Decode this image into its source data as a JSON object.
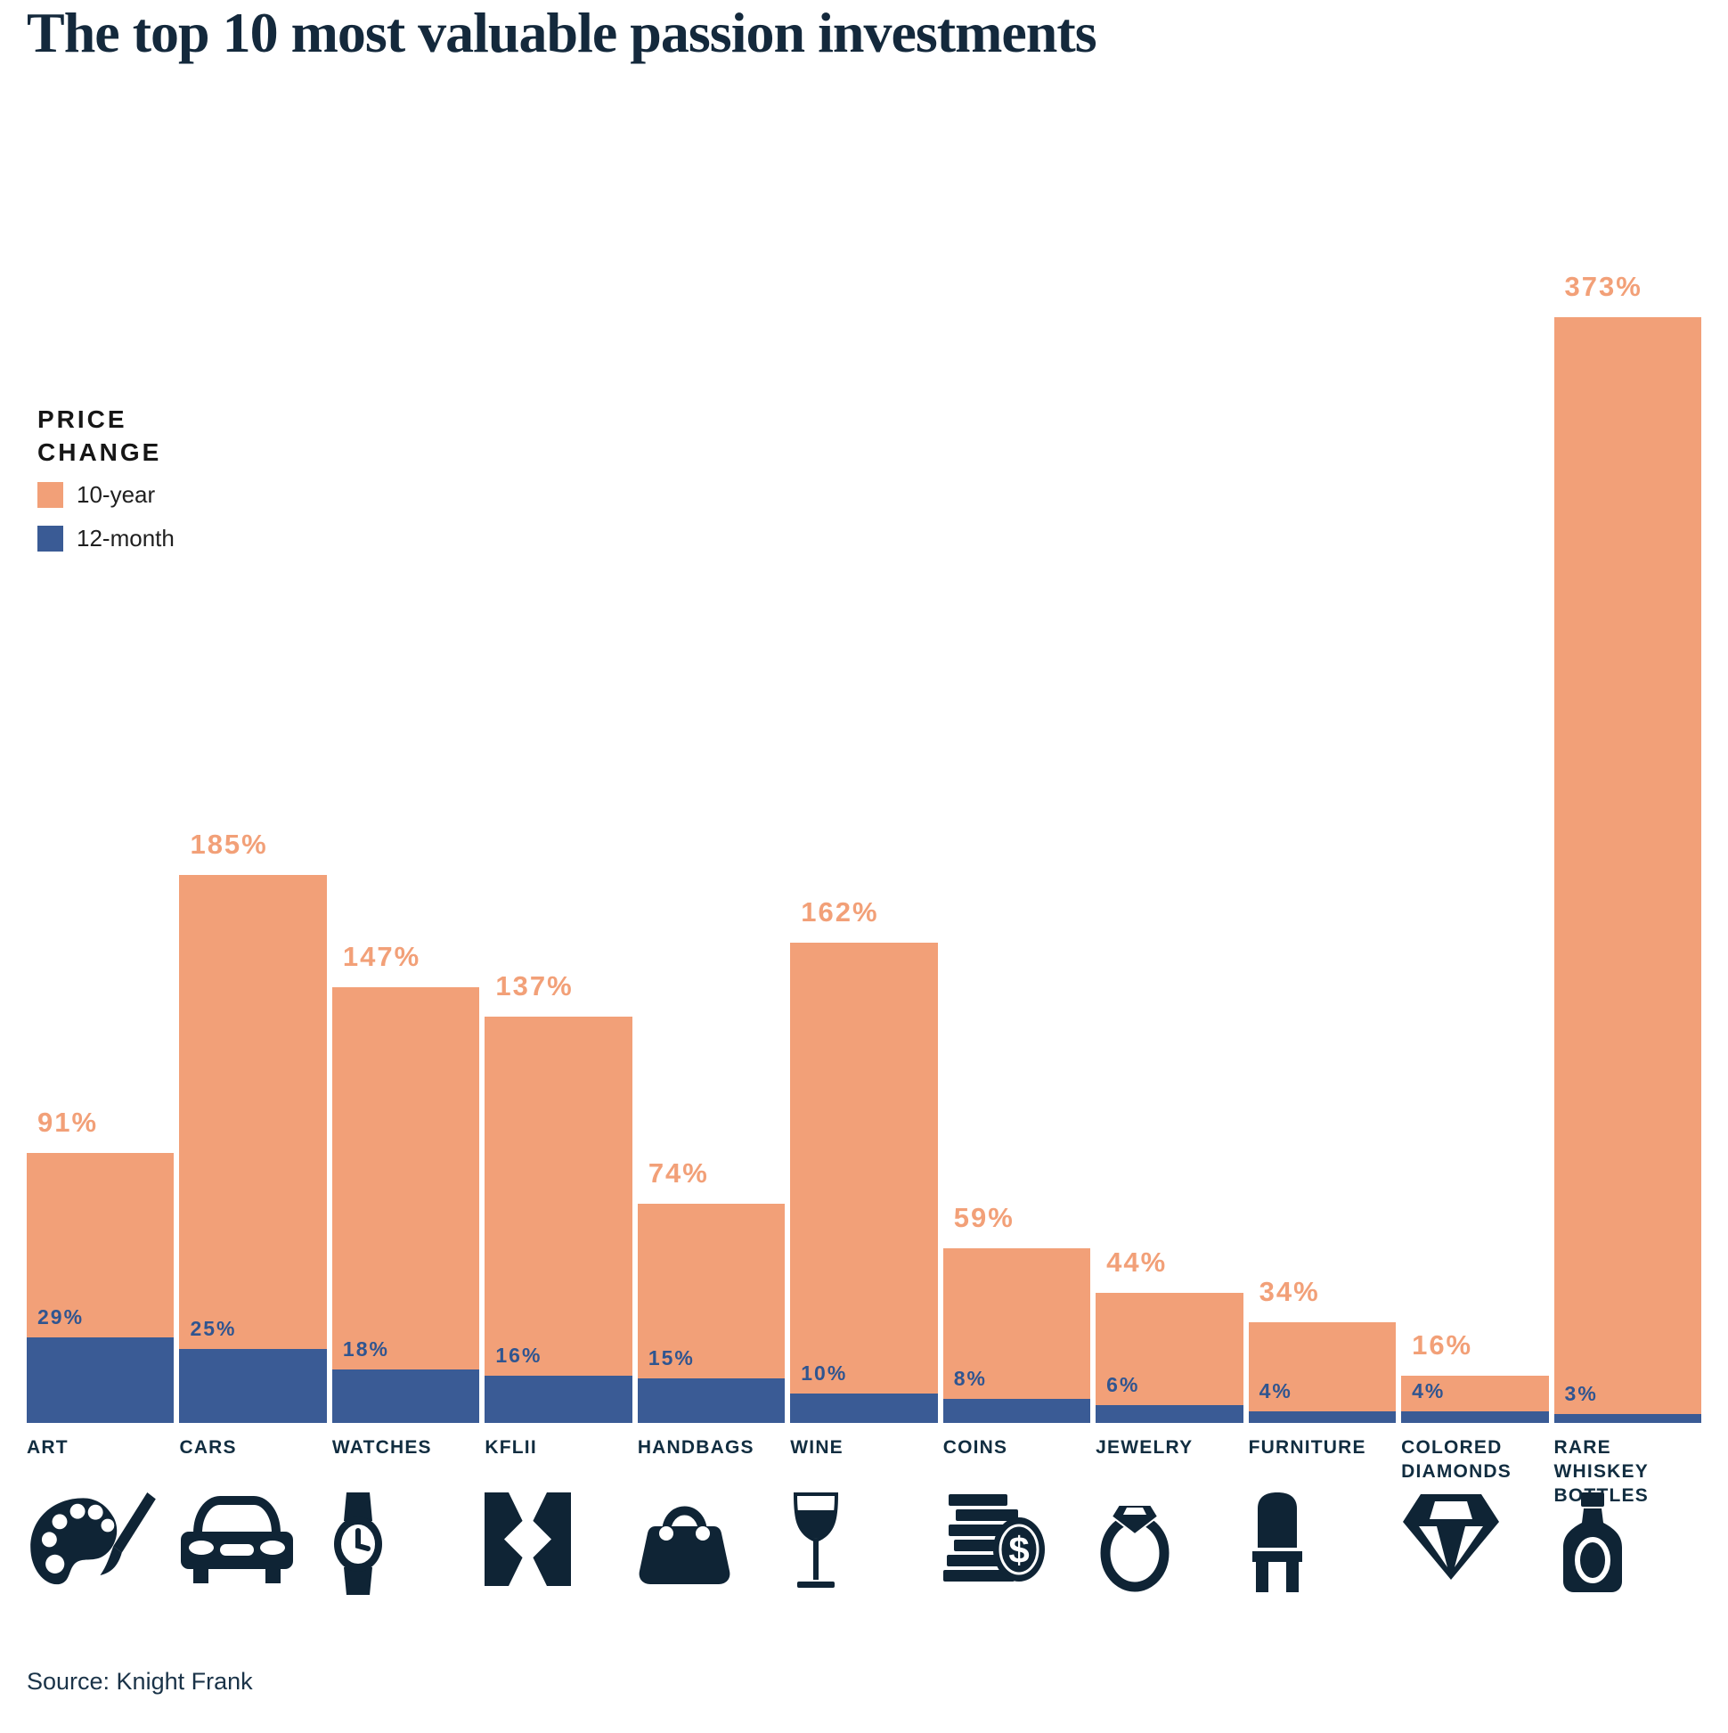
{
  "title": "The top 10 most valuable passion investments",
  "legend": {
    "title_lines": [
      "PRICE",
      "CHANGE"
    ],
    "items": [
      {
        "label": "10-year",
        "color": "#F2A078"
      },
      {
        "label": "12-month",
        "color": "#3A5B95"
      }
    ]
  },
  "source": "Source: Knight Frank",
  "colors": {
    "orange": "#F2A078",
    "blue": "#3A5B95",
    "label_blue": "#305590",
    "navy": "#112D40",
    "icon": "#0F2435",
    "title": "#14293C",
    "legend_text": "#161616",
    "source": "#1A3348"
  },
  "chart_data": {
    "type": "bar",
    "title": "The top 10 most valuable passion investments",
    "xlabel": "",
    "ylabel": "Price change (%)",
    "ylim": [
      0,
      400
    ],
    "grid": false,
    "axes_visible": false,
    "legend_position": "left",
    "bar_style": "12-month bar overlaid at base of 10-year bar",
    "unit": "%",
    "categories": [
      "ART",
      "CARS",
      "WATCHES",
      "KFLII",
      "HANDBAGS",
      "WINE",
      "COINS",
      "JEWELRY",
      "FURNITURE",
      "COLORED DIAMONDS",
      "RARE WHISKEY BOTTLES"
    ],
    "icons": [
      "palette-icon",
      "car-icon",
      "watch-icon",
      "kflii-logo-icon",
      "handbag-icon",
      "wine-glass-icon",
      "coins-icon",
      "ring-icon",
      "chair-icon",
      "diamond-icon",
      "whiskey-bottle-icon"
    ],
    "series": [
      {
        "name": "10-year",
        "color": "#F2A078",
        "values": [
          91,
          185,
          147,
          137,
          74,
          162,
          59,
          44,
          34,
          16,
          373
        ]
      },
      {
        "name": "12-month",
        "color": "#3A5B95",
        "values": [
          29,
          25,
          18,
          16,
          15,
          10,
          8,
          6,
          4,
          4,
          3
        ]
      }
    ]
  }
}
